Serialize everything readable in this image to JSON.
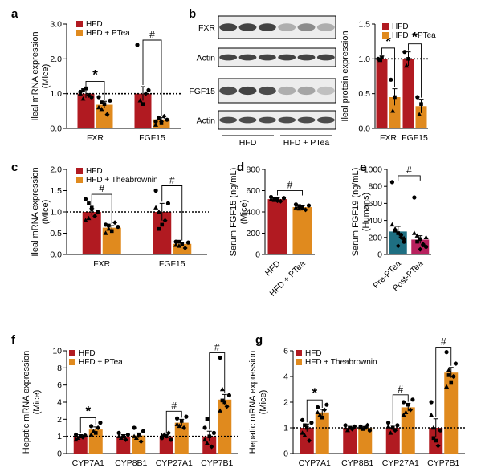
{
  "colors": {
    "hfd": "#b11a21",
    "ptea": "#e08a1e",
    "pre": "#1e6f82",
    "post": "#b8215e",
    "blot_band": "#3a3a3a"
  },
  "chart_data": [
    {
      "id": "a",
      "panel_label": "a",
      "type": "bar",
      "ylabel": [
        "Ileal mRNA expression",
        "(Mice)"
      ],
      "categories": [
        "FXR",
        "FGF15"
      ],
      "ylim": [
        0,
        3.0
      ],
      "yticks": [
        "0.0",
        "1.0",
        "2.0",
        "3.0"
      ],
      "series": [
        {
          "name": "HFD",
          "values": [
            1.0,
            1.0
          ],
          "errors": [
            0.12,
            0.2
          ],
          "points": [
            [
              1.05,
              0.85,
              1.15,
              0.95,
              0.9,
              1.0,
              1.1
            ],
            [
              2.4,
              0.8,
              0.7,
              1.0,
              1.1
            ]
          ]
        },
        {
          "name": "HFD + PTea",
          "values": [
            0.68,
            0.26
          ],
          "errors": [
            0.1,
            0.05
          ],
          "points": [
            [
              0.9,
              0.55,
              0.7,
              0.4,
              0.8,
              0.6,
              0.75
            ],
            [
              0.2,
              0.3,
              0.15,
              0.35,
              0.25,
              0.1,
              0.3,
              0.2
            ]
          ]
        }
      ],
      "reference_line": 1.0,
      "annotations": [
        {
          "text": "*",
          "category": 0
        },
        {
          "text": "#",
          "category": 1
        }
      ]
    },
    {
      "id": "b_quant",
      "panel_label": "",
      "type": "bar",
      "ylabel": [
        "Ileal protein expression"
      ],
      "categories": [
        "FXR",
        "FGF15"
      ],
      "ylim": [
        0,
        1.5
      ],
      "yticks": [
        "0.0",
        "0.5",
        "1.0",
        "1.5"
      ],
      "series": [
        {
          "name": "HFD",
          "values": [
            1.0,
            1.0
          ],
          "errors": [
            0.04,
            0.1
          ],
          "points": [
            [
              1.0,
              0.98,
              1.02
            ],
            [
              1.1,
              0.9,
              1.0
            ]
          ]
        },
        {
          "name": "HFD + PTea",
          "values": [
            0.45,
            0.32
          ],
          "errors": [
            0.12,
            0.1
          ],
          "points": [
            [
              0.7,
              0.25,
              0.45
            ],
            [
              0.45,
              0.2,
              0.35
            ]
          ]
        }
      ],
      "reference_line": 1.0,
      "annotations": [
        {
          "text": "*",
          "category": 0
        },
        {
          "text": "*",
          "category": 1
        }
      ]
    },
    {
      "id": "c",
      "panel_label": "c",
      "type": "bar",
      "ylabel": [
        "Ileal mRNA expression",
        "(Mice)"
      ],
      "categories": [
        "FXR",
        "FGF15"
      ],
      "ylim": [
        0,
        2.0
      ],
      "yticks": [
        "0.0",
        "0.5",
        "1.0",
        "1.5",
        "2.0"
      ],
      "series": [
        {
          "name": "HFD",
          "values": [
            1.0,
            1.0
          ],
          "errors": [
            0.08,
            0.2
          ],
          "points": [
            [
              1.3,
              0.85,
              1.1,
              0.9,
              1.0,
              0.8,
              1.2,
              1.05
            ],
            [
              1.5,
              1.0,
              0.7,
              0.8,
              1.2,
              1.1,
              0.6
            ]
          ]
        },
        {
          "name": "HFD + Theabrownin",
          "values": [
            0.63,
            0.25
          ],
          "errors": [
            0.05,
            0.04
          ],
          "points": [
            [
              0.7,
              0.6,
              0.55,
              0.75,
              0.65,
              0.5,
              0.68
            ],
            [
              0.3,
              0.2,
              0.25,
              0.15,
              0.28,
              0.22,
              0.3
            ]
          ]
        }
      ],
      "reference_line": 1.0,
      "annotations": [
        {
          "text": "#",
          "category": 0
        },
        {
          "text": "#",
          "category": 1
        }
      ]
    },
    {
      "id": "d",
      "panel_label": "d",
      "type": "bar",
      "ylabel": [
        "Serum FGF15  (ng/mL)",
        "(Mice)"
      ],
      "categories": [
        "HFD",
        "HFD + PTea"
      ],
      "ylim": [
        0,
        800
      ],
      "yticks": [
        "0",
        "200",
        "400",
        "600",
        "800"
      ],
      "bars": [
        {
          "value": 520,
          "error": 10,
          "color_key": "hfd",
          "points": [
            540,
            510,
            525,
            500,
            530,
            515,
            520,
            505
          ]
        },
        {
          "value": 445,
          "error": 12,
          "color_key": "ptea",
          "points": [
            470,
            430,
            450,
            420,
            460,
            440,
            455,
            435
          ]
        }
      ],
      "annotations": [
        {
          "text": "#"
        }
      ]
    },
    {
      "id": "e",
      "panel_label": "e",
      "type": "bar",
      "ylabel": [
        "Serum FGF19  (ng/mL)",
        "(Humans)"
      ],
      "categories": [
        "Pre-PTea",
        "Post-PTea"
      ],
      "ylim": [
        0,
        1000
      ],
      "yticks": [
        "0",
        "200",
        "400",
        "600",
        "800",
        "1000"
      ],
      "bars": [
        {
          "value": 270,
          "error": 60,
          "color_key": "pre",
          "points": [
            850,
            300,
            250,
            200,
            150,
            350,
            280,
            100,
            230,
            190
          ]
        },
        {
          "value": 175,
          "error": 45,
          "color_key": "post",
          "points": [
            670,
            220,
            180,
            120,
            90,
            250,
            150,
            60,
            110,
            200
          ]
        }
      ],
      "annotations": [
        {
          "text": "#"
        }
      ]
    },
    {
      "id": "f",
      "panel_label": "f",
      "type": "bar",
      "ylabel": [
        "Hepatic mRNA expression",
        "(Mice)"
      ],
      "categories": [
        "CYP7A1",
        "CYP8B1",
        "CYP27A1",
        "CYP7B1"
      ],
      "y_tick_values": [
        0,
        1,
        2,
        4,
        6,
        8,
        10
      ],
      "yticks": [
        "0",
        "1",
        "2",
        "4",
        "6",
        "8",
        "10"
      ],
      "series": [
        {
          "name": "HFD",
          "values": [
            1.0,
            1.0,
            1.0,
            1.0
          ],
          "errors": [
            0.1,
            0.1,
            0.12,
            0.3
          ],
          "points": [
            [
              1.1,
              0.9,
              1.0,
              0.95,
              1.05,
              0.8
            ],
            [
              1.2,
              0.9,
              1.0,
              0.8,
              1.1,
              1.0
            ],
            [
              0.9,
              1.1,
              1.0,
              1.2,
              0.8,
              1.05
            ],
            [
              1.5,
              0.6,
              1.0,
              0.4,
              1.2,
              0.8,
              2.0
            ]
          ]
        },
        {
          "name": "HFD + PTea",
          "values": [
            1.4,
            1.05,
            1.8,
            4.3
          ],
          "errors": [
            0.15,
            0.15,
            0.2,
            0.6
          ],
          "points": [
            [
              1.6,
              1.3,
              1.2,
              1.5,
              1.8,
              1.1
            ],
            [
              1.5,
              0.9,
              1.1,
              0.7,
              1.3,
              1.0
            ],
            [
              2.1,
              1.6,
              1.9,
              1.5,
              2.3,
              1.7
            ],
            [
              9.2,
              5.5,
              4.0,
              3.5,
              4.8,
              3.0,
              4.2
            ]
          ]
        }
      ],
      "reference_line": 1.0,
      "annotations": [
        {
          "text": "*",
          "category": 0
        },
        {
          "text": "#",
          "category": 2
        },
        {
          "text": "#",
          "category": 3
        }
      ]
    },
    {
      "id": "g",
      "panel_label": "g",
      "type": "bar",
      "ylabel": [
        "Hepatic mRNA expression",
        "(Mice)"
      ],
      "categories": [
        "CYP7A1",
        "CYP8B1",
        "CYP27A1",
        "CYP7B1"
      ],
      "y_tick_values": [
        0,
        1,
        2,
        4,
        6
      ],
      "yticks": [
        "0",
        "1",
        "2",
        "4",
        "6"
      ],
      "series": [
        {
          "name": "HFD",
          "values": [
            1.0,
            1.0,
            1.0,
            1.0
          ],
          "errors": [
            0.15,
            0.06,
            0.1,
            0.35
          ],
          "points": [
            [
              1.3,
              0.7,
              1.0,
              0.5,
              1.2,
              0.8,
              1.1
            ],
            [
              1.1,
              0.9,
              1.0,
              0.95,
              1.05,
              1.0
            ],
            [
              1.2,
              0.8,
              1.0,
              0.9,
              1.1,
              1.05
            ],
            [
              2.0,
              1.0,
              0.5,
              0.3,
              0.9,
              1.5,
              0.6
            ]
          ]
        },
        {
          "name": "HFD + Theabrownin",
          "values": [
            1.6,
            1.0,
            1.8,
            4.3
          ],
          "errors": [
            0.12,
            0.05,
            0.15,
            0.4
          ],
          "points": [
            [
              1.8,
              1.5,
              1.4,
              1.7,
              1.9,
              1.6
            ],
            [
              1.05,
              0.95,
              1.0,
              1.1,
              0.9,
              1.0
            ],
            [
              2.0,
              1.6,
              1.9,
              1.7,
              2.2,
              1.5
            ],
            [
              5.9,
              4.5,
              3.5,
              4.0,
              5.0,
              3.2,
              4.1
            ]
          ]
        }
      ],
      "reference_line": 1.0,
      "annotations": [
        {
          "text": "*",
          "category": 0
        },
        {
          "text": "#",
          "category": 2
        },
        {
          "text": "#",
          "category": 3
        }
      ]
    }
  ],
  "blot": {
    "panel_label": "b",
    "rows": [
      {
        "label": "FXR",
        "intensities": [
          0.95,
          0.95,
          0.95,
          0.35,
          0.55,
          0.35
        ]
      },
      {
        "label": "Actin",
        "intensities": [
          0.95,
          0.95,
          0.95,
          0.95,
          0.95,
          0.95
        ]
      },
      {
        "label": "FGF15",
        "intensities": [
          0.9,
          0.95,
          0.9,
          0.35,
          0.4,
          0.25
        ]
      },
      {
        "label": "Actin",
        "intensities": [
          0.9,
          0.9,
          0.9,
          0.9,
          0.9,
          0.9
        ]
      }
    ],
    "group_labels": [
      "HFD",
      "HFD + PTea"
    ]
  }
}
